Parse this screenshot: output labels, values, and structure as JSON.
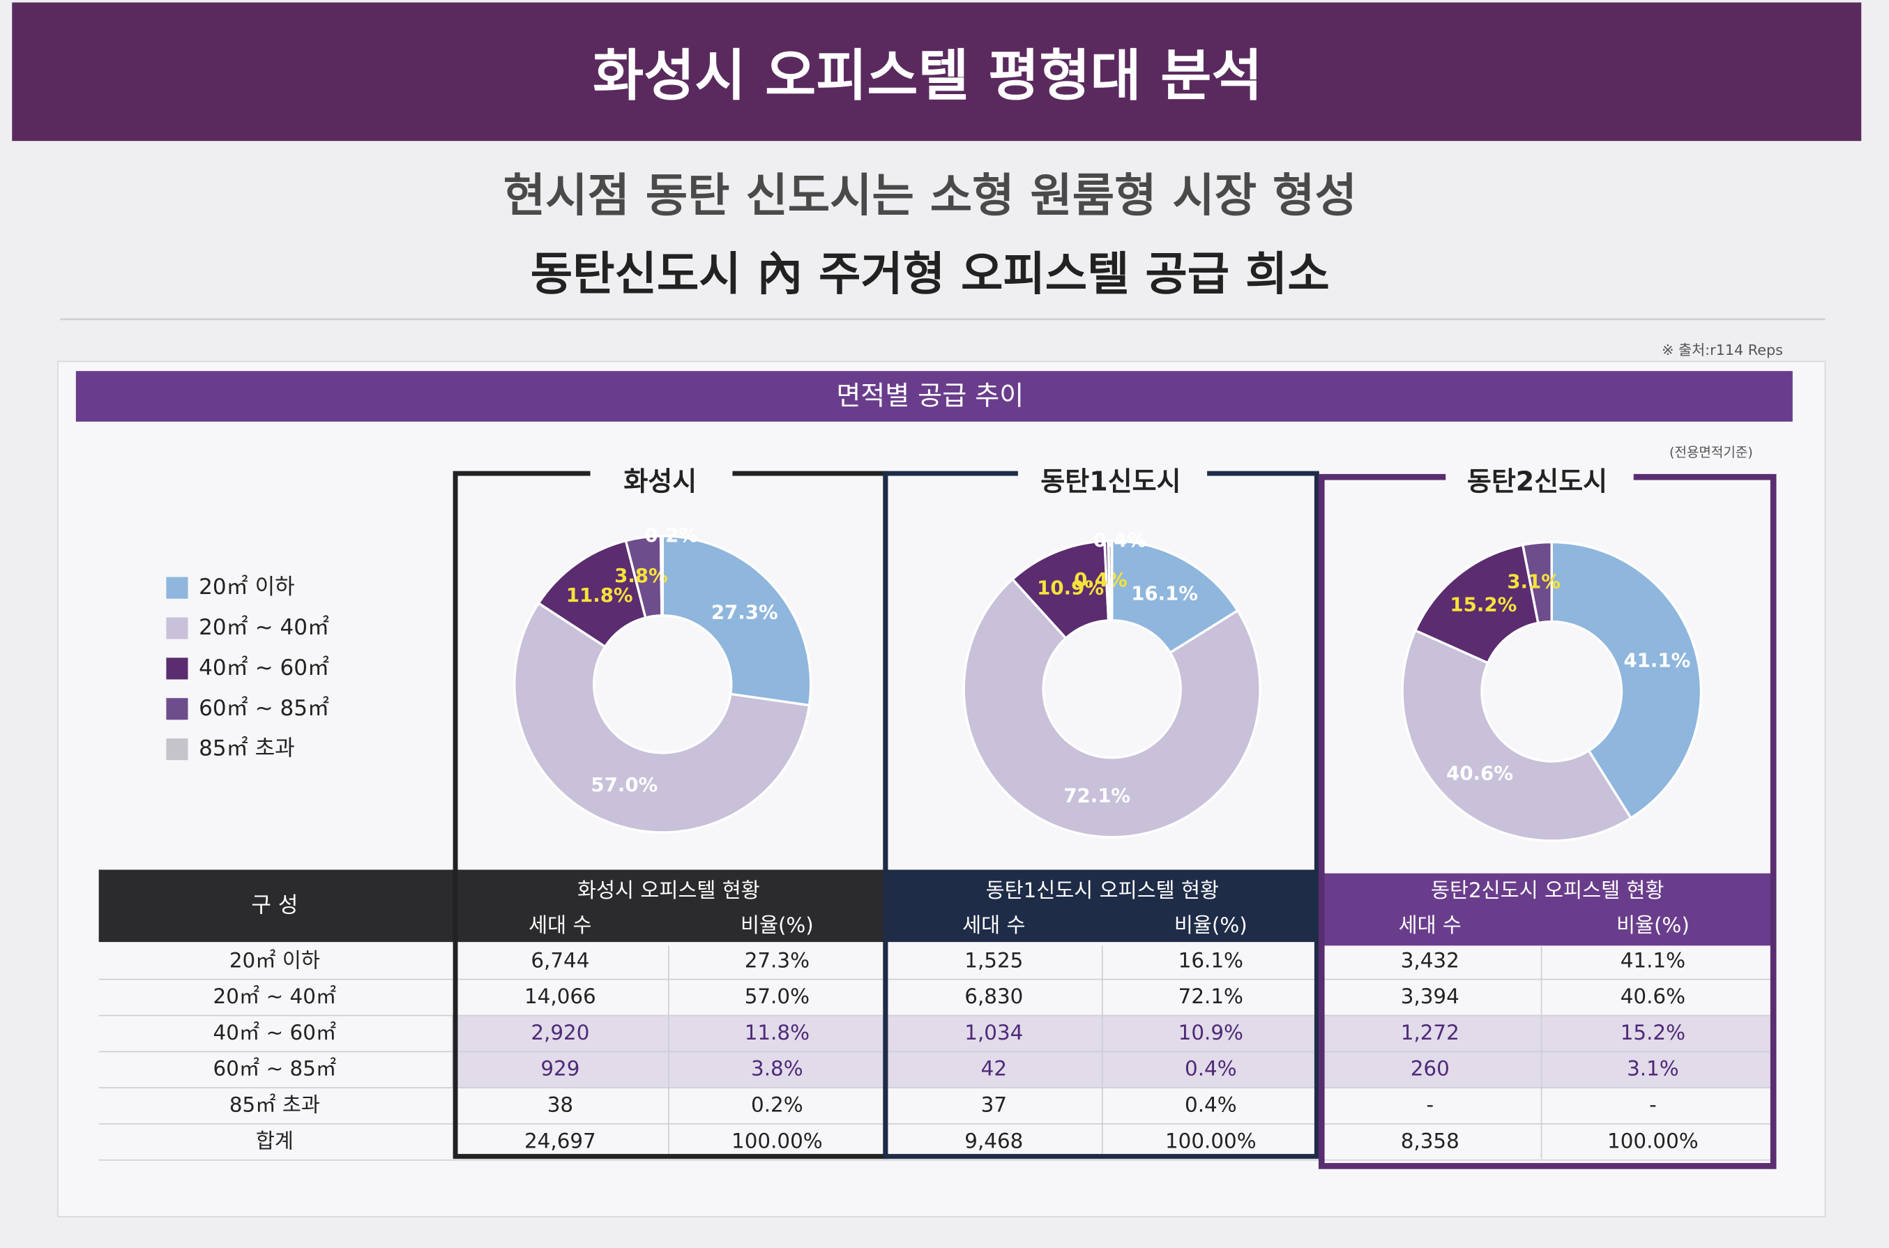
{
  "header": {
    "title": "화성시 오피스텔 평형대 분석"
  },
  "subtitle": [
    "현시점 동탄 신도시는 소형 원룸형 시장 형성",
    "동탄신도시 內 주거형 오피스텔 공급 희소"
  ],
  "source": "※ 출처:r114 Reps",
  "panel_title": "면적별 공급 추이",
  "basis_note": "(전용면적기준)",
  "chart_data": [
    {
      "type": "pie",
      "title": "화성시",
      "categories": [
        "20㎡ 이하",
        "20㎡ ~ 40㎡",
        "40㎡ ~ 60㎡",
        "60㎡ ~ 85㎡",
        "85㎡ 초과"
      ],
      "values": [
        27.3,
        57.0,
        11.8,
        3.8,
        0.2
      ],
      "value_labels": [
        "27.3%",
        "57.0%",
        "11.8%",
        "3.8%",
        "0.2%"
      ],
      "colors": [
        "#8fb6dd",
        "#c9c0da",
        "#5b2c70",
        "#6e4d8c",
        "#c4c4ca"
      ]
    },
    {
      "type": "pie",
      "title": "동탄1신도시",
      "categories": [
        "20㎡ 이하",
        "20㎡ ~ 40㎡",
        "40㎡ ~ 60㎡",
        "60㎡ ~ 85㎡",
        "85㎡ 초과"
      ],
      "values": [
        16.1,
        72.1,
        10.9,
        0.4,
        0.4
      ],
      "value_labels": [
        "16.1%",
        "72.1%",
        "10.9%",
        "0.4%",
        "0.4%"
      ],
      "colors": [
        "#8fb6dd",
        "#c9c0da",
        "#5b2c70",
        "#6e4d8c",
        "#c4c4ca"
      ]
    },
    {
      "type": "pie",
      "title": "동탄2신도시",
      "categories": [
        "20㎡ 이하",
        "20㎡ ~ 40㎡",
        "40㎡ ~ 60㎡",
        "60㎡ ~ 85㎡",
        "85㎡ 초과"
      ],
      "values": [
        41.1,
        40.6,
        15.2,
        3.1,
        null
      ],
      "value_labels": [
        "41.1%",
        "40.6%",
        "15.2%",
        "3.1%",
        null
      ],
      "colors": [
        "#8fb6dd",
        "#c9c0da",
        "#5b2c70",
        "#6e4d8c",
        "#c4c4ca"
      ]
    }
  ],
  "table": {
    "corner": "구 성",
    "groups": [
      "화성시 오피스텔 현황",
      "동탄1신도시 오피스텔 현황",
      "동탄2신도시 오피스텔 현황"
    ],
    "subheaders": [
      "세대 수",
      "비율(%)"
    ],
    "rows": [
      [
        "20㎡ 이하",
        "6,744",
        "27.3%",
        "1,525",
        "16.1%",
        "3,432",
        "41.1%"
      ],
      [
        "20㎡ ~ 40㎡",
        "14,066",
        "57.0%",
        "6,830",
        "72.1%",
        "3,394",
        "40.6%"
      ],
      [
        "40㎡ ~ 60㎡",
        "2,920",
        "11.8%",
        "1,034",
        "10.9%",
        "1,272",
        "15.2%"
      ],
      [
        "60㎡ ~ 85㎡",
        "929",
        "3.8%",
        "42",
        "0.4%",
        "260",
        "3.1%"
      ],
      [
        "85㎡ 초과",
        "38",
        "0.2%",
        "37",
        "0.4%",
        "-",
        "-"
      ],
      [
        "합계",
        "24,697",
        "100.00%",
        "9,468",
        "100.00%",
        "8,358",
        "100.00%"
      ]
    ]
  }
}
